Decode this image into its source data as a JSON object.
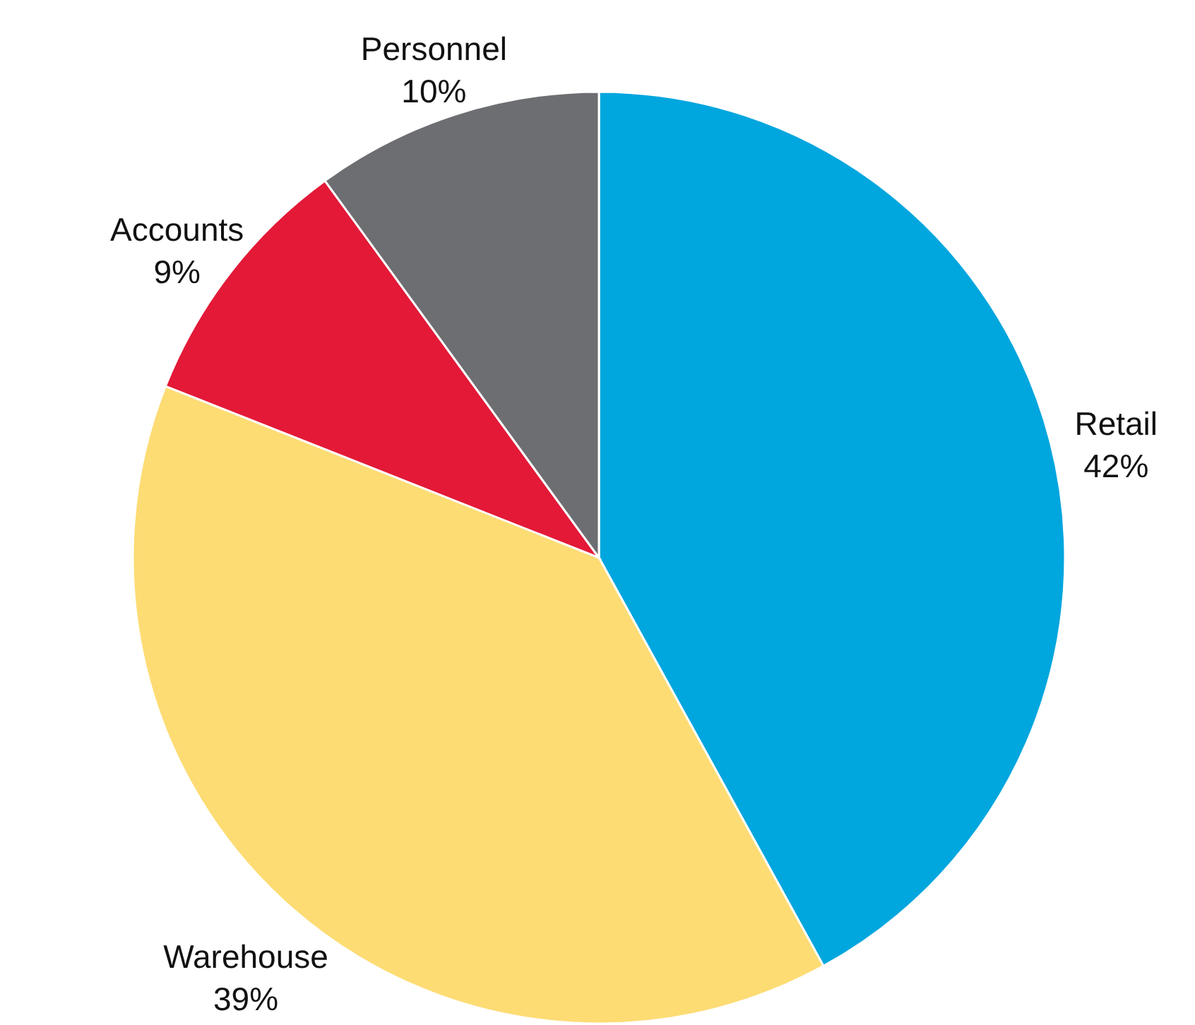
{
  "chart_data": {
    "type": "pie",
    "categories": [
      "Retail",
      "Warehouse",
      "Accounts",
      "Personnel"
    ],
    "values": [
      42,
      39,
      9,
      10
    ],
    "value_labels": [
      "42%",
      "39%",
      "9%",
      "10%"
    ],
    "colors": [
      "#00a6de",
      "#fddc74",
      "#e31937",
      "#6d6e71"
    ]
  }
}
